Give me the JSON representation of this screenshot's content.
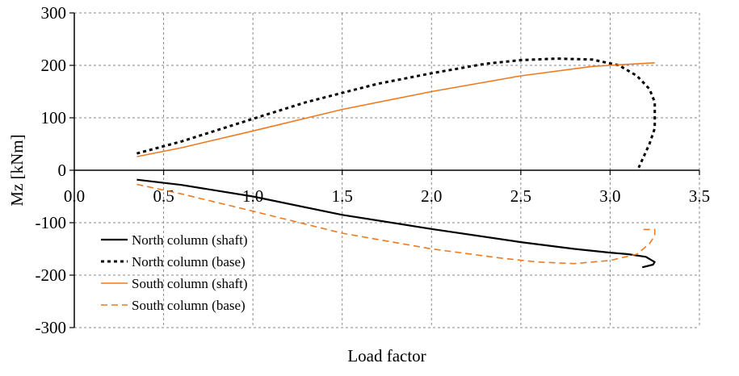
{
  "chart_data": {
    "type": "line",
    "title": "",
    "xlabel": "Load factor",
    "ylabel": "Mz [kNm]",
    "xlim": [
      0,
      3.5
    ],
    "ylim": [
      -300,
      300
    ],
    "xticks": [
      0.0,
      0.5,
      1.0,
      1.5,
      2.0,
      2.5,
      3.0,
      3.5
    ],
    "xtick_labels": [
      "0.0",
      "0.5",
      "1.0",
      "1.5",
      "2.0",
      "2.5",
      "3.0",
      "3.5"
    ],
    "yticks": [
      -300,
      -200,
      -100,
      0,
      100,
      200,
      300
    ],
    "ytick_labels": [
      "-300",
      "-200",
      "-100",
      "0",
      "100",
      "200",
      "300"
    ],
    "grid": true,
    "legend_placement": "bottom-left",
    "series": [
      {
        "name": "North column (shaft)",
        "color": "#000000",
        "style": "solid",
        "x": [
          0.35,
          0.6,
          1.0,
          1.5,
          2.0,
          2.5,
          2.8,
          3.0,
          3.1,
          3.2,
          3.25,
          3.24,
          3.18
        ],
        "y": [
          -18,
          -28,
          -50,
          -85,
          -112,
          -137,
          -150,
          -157,
          -160,
          -165,
          -175,
          -180,
          -185
        ]
      },
      {
        "name": "North column (base)",
        "color": "#000000",
        "style": "dotted",
        "x": [
          0.35,
          0.6,
          1.0,
          1.3,
          1.7,
          2.0,
          2.3,
          2.5,
          2.7,
          2.9,
          3.05,
          3.15,
          3.22,
          3.25,
          3.25,
          3.22,
          3.16
        ],
        "y": [
          32,
          55,
          98,
          130,
          165,
          185,
          203,
          210,
          213,
          211,
          200,
          180,
          155,
          130,
          80,
          50,
          5
        ]
      },
      {
        "name": "South column (shaft)",
        "color": "#f07a20",
        "style": "solid",
        "x": [
          0.35,
          0.6,
          1.0,
          1.5,
          2.0,
          2.5,
          2.9,
          3.1,
          3.25
        ],
        "y": [
          26,
          43,
          75,
          116,
          150,
          180,
          198,
          202,
          205
        ]
      },
      {
        "name": "South column (base)",
        "color": "#f07a20",
        "style": "dashed",
        "x": [
          0.35,
          0.6,
          1.0,
          1.5,
          2.0,
          2.4,
          2.6,
          2.8,
          3.0,
          3.15,
          3.22,
          3.25,
          3.25,
          3.18
        ],
        "y": [
          -27,
          -45,
          -78,
          -120,
          -150,
          -168,
          -175,
          -178,
          -172,
          -160,
          -140,
          -125,
          -113,
          -113
        ]
      }
    ]
  }
}
